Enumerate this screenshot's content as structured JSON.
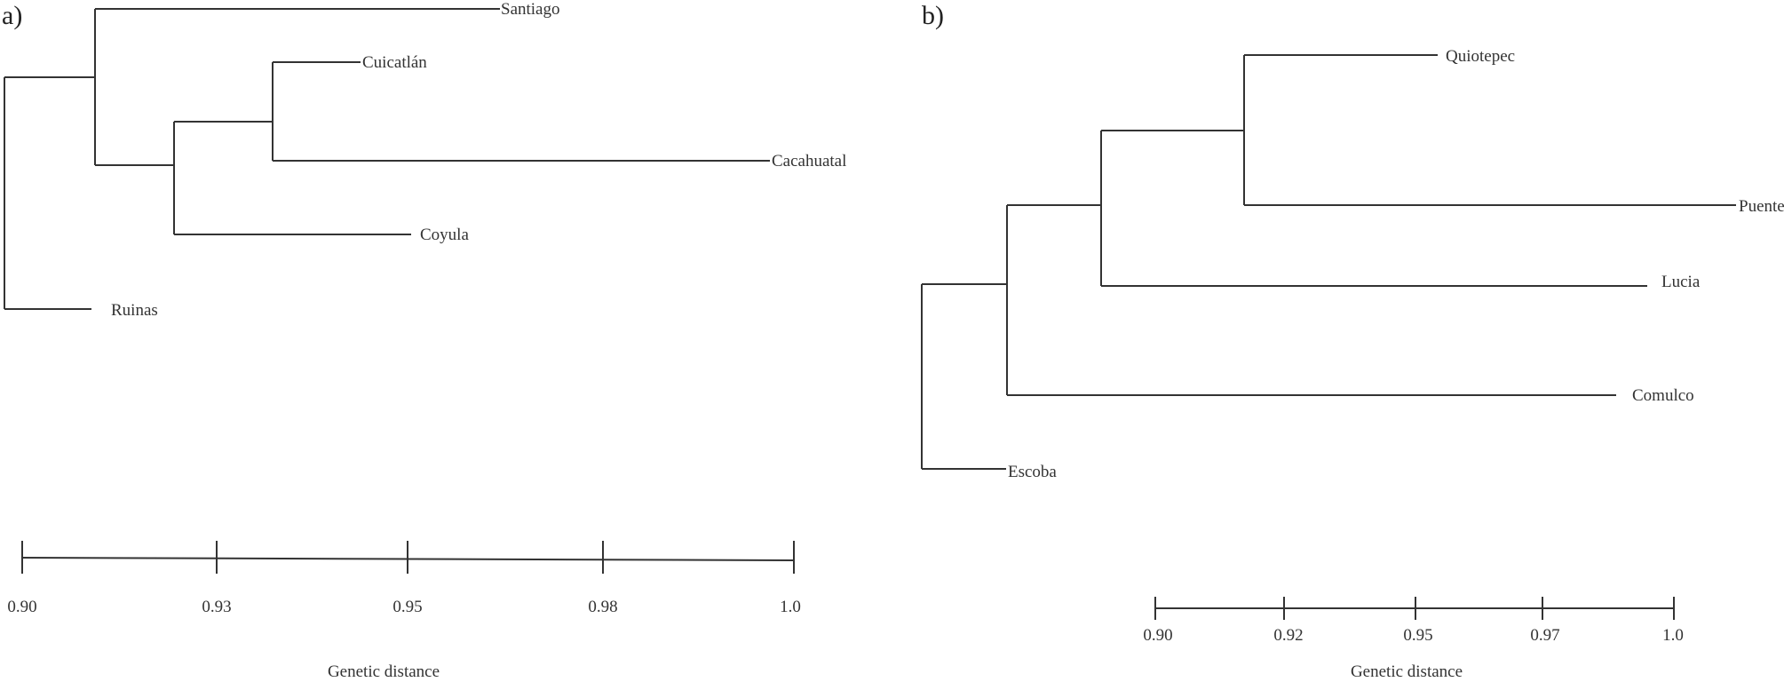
{
  "panels": [
    {
      "label": "a)",
      "leaves": [
        "Santiago",
        "Cuicatlán",
        "Cacahuatal",
        "Coyula",
        "Ruinas"
      ],
      "scale": {
        "ticks": [
          "0.90",
          "0.93",
          "0.95",
          "0.98",
          "1.0"
        ],
        "title": "Genetic distance"
      }
    },
    {
      "label": "b)",
      "leaves": [
        "Quiotepec",
        "Puente",
        "Lucia",
        "Comulco",
        "Escoba"
      ],
      "scale": {
        "ticks": [
          "0.90",
          "0.92",
          "0.95",
          "0.97",
          "1.0"
        ],
        "title": "Genetic distance"
      }
    }
  ]
}
